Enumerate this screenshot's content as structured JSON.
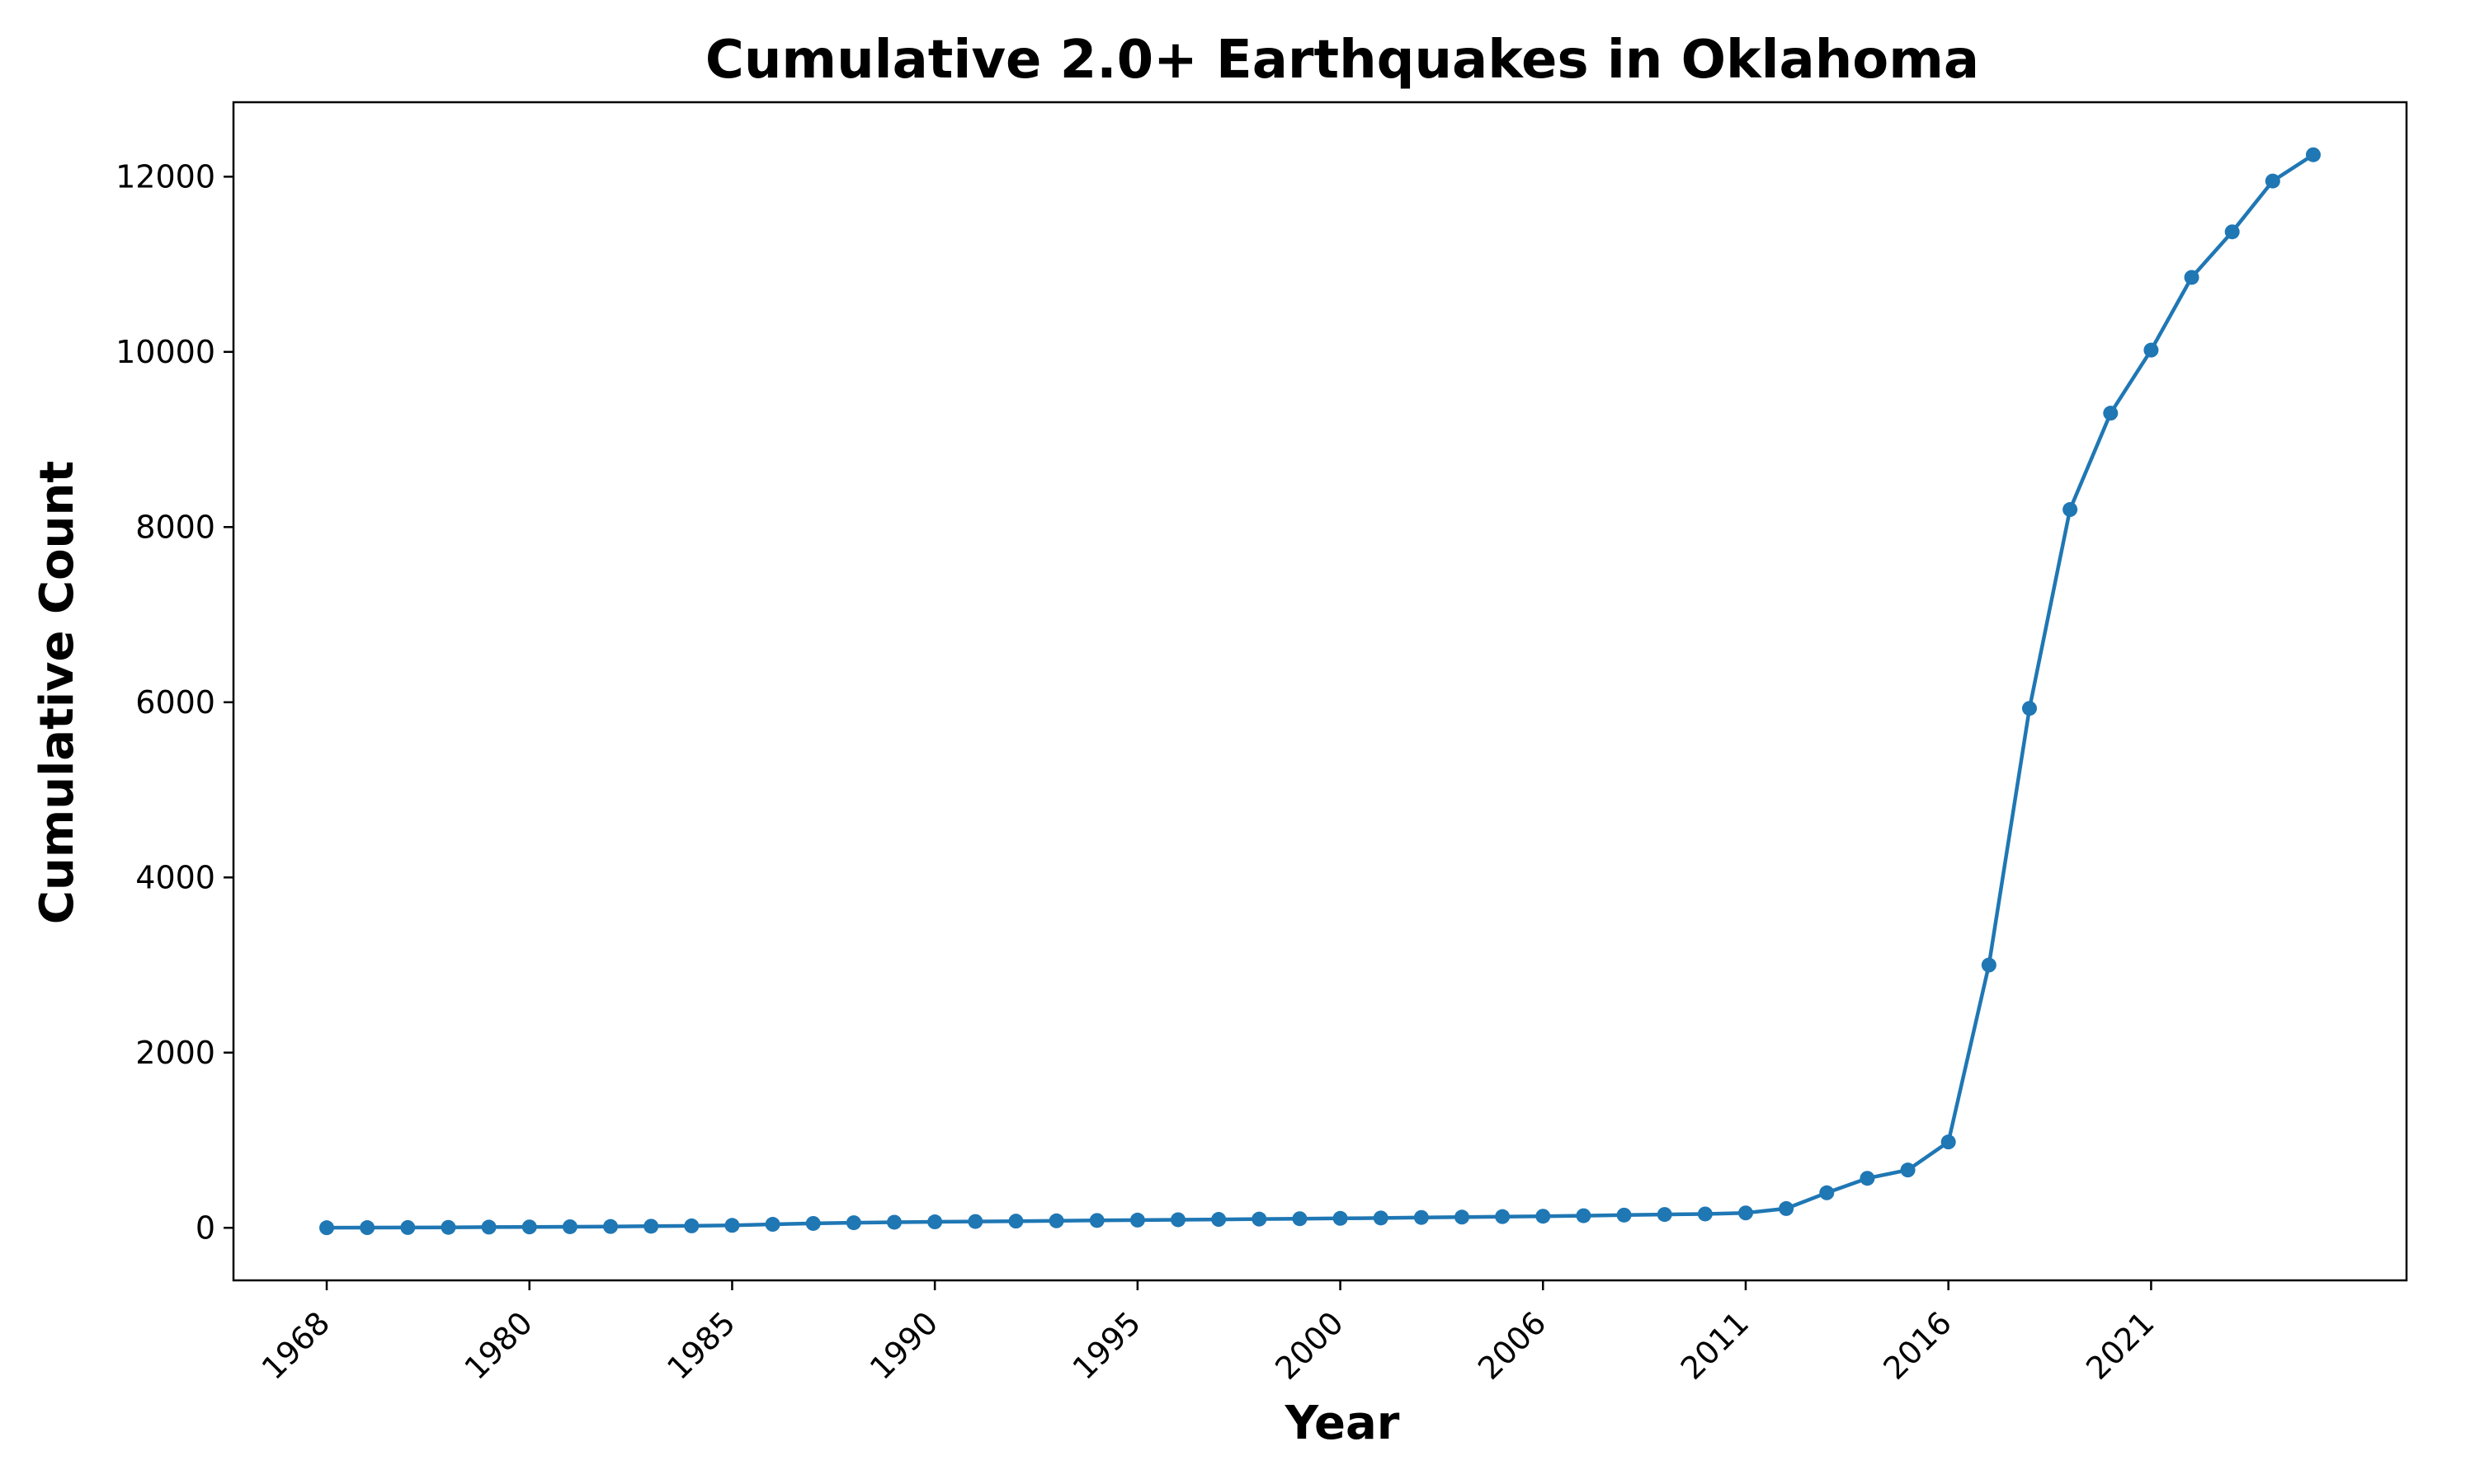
{
  "chart_data": {
    "type": "line",
    "title": "Cumulative 2.0+ Earthquakes in Oklahoma",
    "xlabel": "Year",
    "ylabel": "Cumulative Count",
    "xtick_labels": [
      "1968",
      "1980",
      "1985",
      "1990",
      "1995",
      "2000",
      "2006",
      "2011",
      "2016",
      "2021"
    ],
    "yticks": [
      0,
      2000,
      4000,
      6000,
      8000,
      10000,
      12000
    ],
    "ylim": [
      -600,
      12850
    ],
    "grid": false,
    "legend": "none",
    "series": [
      {
        "color": "#1f77b4",
        "marker": "circle",
        "values": [
          1,
          2,
          3,
          5,
          8,
          10,
          12,
          15,
          18,
          22,
          28,
          40,
          50,
          58,
          64,
          68,
          72,
          76,
          80,
          84,
          88,
          92,
          96,
          100,
          104,
          108,
          112,
          118,
          122,
          128,
          132,
          138,
          145,
          152,
          158,
          170,
          220,
          400,
          565,
          660,
          980,
          3000,
          5930,
          8200,
          9300,
          10020,
          10850,
          11370,
          11950,
          12250
        ]
      }
    ]
  }
}
